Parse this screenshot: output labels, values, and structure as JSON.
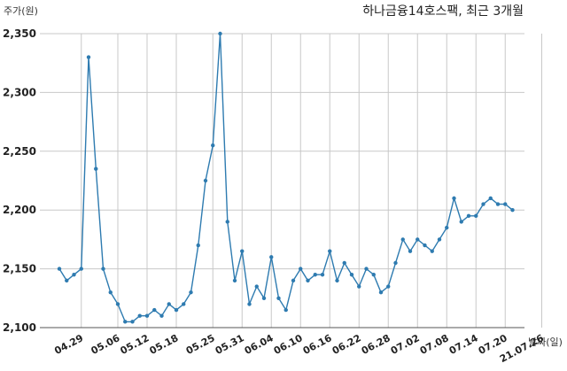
{
  "chart_data": {
    "type": "line",
    "title": "하나금융14호스팩, 최근 3개월",
    "ylabel": "주가(원)",
    "xlabel": "날짜(일)",
    "ylim": [
      2100,
      2350
    ],
    "yticks": [
      "2,100",
      "2,150",
      "2,200",
      "2,250",
      "2,300",
      "2,350"
    ],
    "ytick_values": [
      2100,
      2150,
      2200,
      2250,
      2300,
      2350
    ],
    "xtick_labels": [
      "04.29",
      "05.06",
      "05.12",
      "05.18",
      "05.25",
      "05.31",
      "06.04",
      "06.10",
      "06.16",
      "06.22",
      "06.28",
      "07.02",
      "07.08",
      "07.14",
      "07.20",
      "21.07.26"
    ],
    "xtick_index": [
      3,
      8,
      12,
      16,
      21,
      25,
      29,
      33,
      37,
      41,
      45,
      49,
      53,
      57,
      61,
      66
    ],
    "grid": true,
    "series": [
      {
        "values": [
          2150,
          2140,
          2145,
          2150,
          2330,
          2235,
          2150,
          2130,
          2120,
          2105,
          2105,
          2110,
          2110,
          2115,
          2110,
          2120,
          2115,
          2120,
          2130,
          2170,
          2225,
          2255,
          2350,
          2190,
          2140,
          2165,
          2120,
          2135,
          2125,
          2160,
          2125,
          2115,
          2140,
          2150,
          2140,
          2145,
          2145,
          2165,
          2140,
          2155,
          2145,
          2135,
          2150,
          2145,
          2130,
          2135,
          2155,
          2175,
          2165,
          2175,
          2170,
          2165,
          2175,
          2185,
          2210,
          2190,
          2195,
          2195,
          2205,
          2210,
          2205,
          2205,
          2200
        ]
      }
    ]
  },
  "colors": {
    "line": "#2e7bb0",
    "grid": "#c8c8c8"
  }
}
